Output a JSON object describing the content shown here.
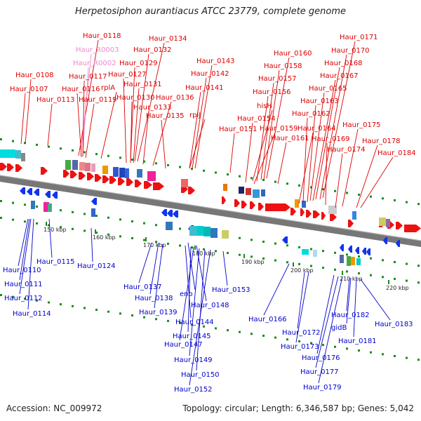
{
  "title": "Herpetosiphon aurantiacus ATCC 23779, complete genome",
  "footer": {
    "accession": "Accession: NC_009972",
    "topology": "Topology: circular; Length: 6,346,587 bp; Genes: 5,042"
  },
  "scale_labels": [
    "150 kbp",
    "160 kbp",
    "170 kbp",
    "180 kbp",
    "190 kbp",
    "200 kbp",
    "210 kbp",
    "220 kbp"
  ],
  "colors": {
    "top_labels": "#dd0000",
    "rna_labels": "#ee88cc",
    "bottom_labels": "#0000cc",
    "backbone": "#777777"
  },
  "top_labels": [
    "Haur_0108",
    "Haur_0107",
    "Haur_0113",
    "Haur_0118",
    "Haur_R0003",
    "Haur_R0002",
    "Haur_0117",
    "Haur_0116",
    "Haur_0119",
    "rplA",
    "Haur_0134",
    "Haur_0132",
    "Haur_0129",
    "Haur_0127",
    "Haur_0131",
    "Haur_0130",
    "Haur_0133",
    "Haur_0136",
    "Haur_0135",
    "Haur_0143",
    "Haur_0142",
    "Haur_0141",
    "rplJ",
    "Haur_0151",
    "Haur_0160",
    "Haur_0158",
    "Haur_0157",
    "Haur_0156",
    "hisH",
    "Haur_0154",
    "Haur_0159",
    "Haur_0161",
    "Haur_0171",
    "Haur_0170",
    "Haur_0168",
    "Haur_0167",
    "Haur_0165",
    "Haur_0163",
    "Haur_0162",
    "Haur_0164",
    "Haur_0169",
    "Haur_0175",
    "Haur_0174",
    "Haur_0178",
    "Haur_0184"
  ],
  "bottom_labels": [
    "Haur_0115",
    "Haur_0110",
    "Haur_0111",
    "Haur_0112",
    "Haur_0114",
    "Haur_0124",
    "Haur_0137",
    "Haur_0138",
    "eno",
    "Haur_0139",
    "Haur_0148",
    "Haur_0144",
    "Haur_0145",
    "Haur_0147",
    "Haur_0149",
    "Haur_0150",
    "Haur_0152",
    "Haur_0153",
    "Haur_0166",
    "Haur_0172",
    "Haur_0173",
    "Haur_0176",
    "Haur_0177",
    "Haur_0179",
    "Haur_0182",
    "gidB",
    "Haur_0181",
    "Haur_0183"
  ]
}
